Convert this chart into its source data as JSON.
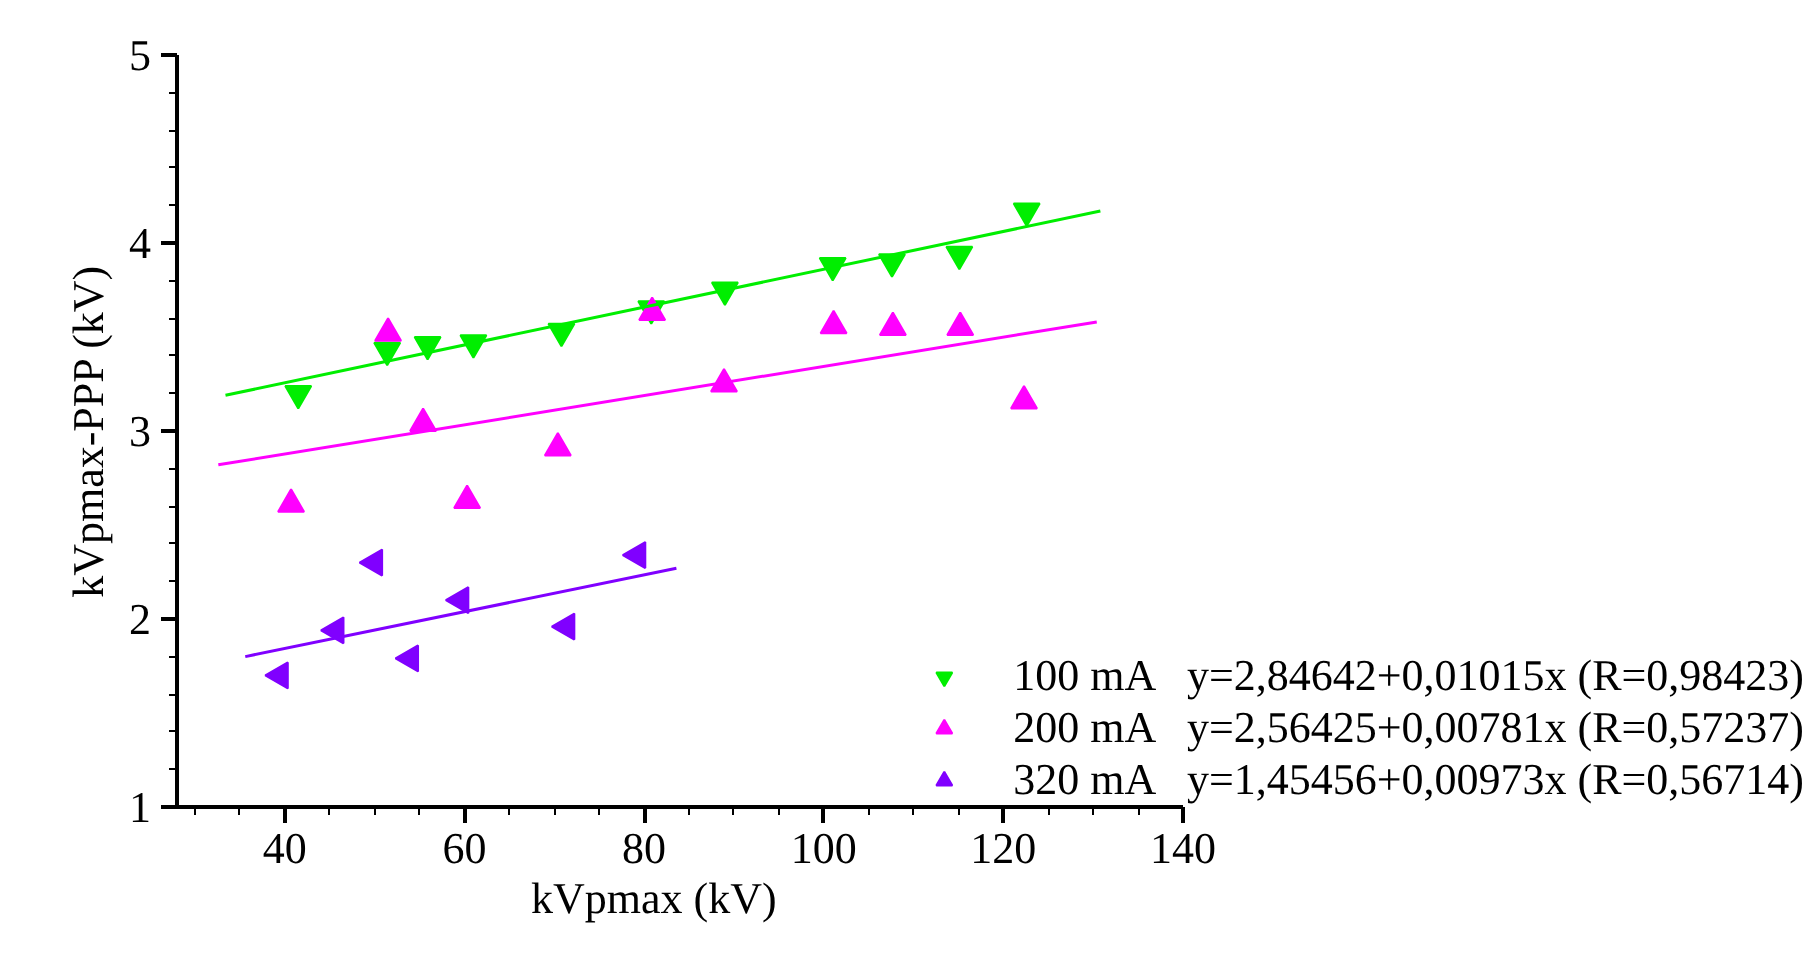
{
  "chart_data": {
    "type": "scatter",
    "xlabel": "kVpmax (kV)",
    "ylabel": "kVpmax-PPP (kV)",
    "xlim": [
      28,
      140
    ],
    "ylim": [
      1,
      5
    ],
    "xticks": [
      40,
      60,
      80,
      100,
      120,
      140,
      {
        "value": 30,
        "label": null
      },
      {
        "value": 35,
        "label": null
      },
      {
        "value": 45,
        "label": null
      },
      {
        "value": 50,
        "label": null
      },
      {
        "value": 55,
        "label": null
      },
      {
        "value": 65,
        "label": null
      },
      {
        "value": 70,
        "label": null
      },
      {
        "value": 75,
        "label": null
      },
      {
        "value": 85,
        "label": null
      },
      {
        "value": 90,
        "label": null
      },
      {
        "value": 95,
        "label": null
      },
      {
        "value": 105,
        "label": null
      },
      {
        "value": 110,
        "label": null
      },
      {
        "value": 115,
        "label": null
      },
      {
        "value": 125,
        "label": null
      },
      {
        "value": 130,
        "label": null
      },
      {
        "value": 135,
        "label": null
      }
    ],
    "yticks": [
      1,
      2,
      3,
      4,
      5,
      {
        "value": 1.2,
        "label": null
      },
      {
        "value": 1.4,
        "label": null
      },
      {
        "value": 1.6,
        "label": null
      },
      {
        "value": 1.8,
        "label": null
      },
      {
        "value": 2.2,
        "label": null
      },
      {
        "value": 2.4,
        "label": null
      },
      {
        "value": 2.6,
        "label": null
      },
      {
        "value": 2.8,
        "label": null
      },
      {
        "value": 3.2,
        "label": null
      },
      {
        "value": 3.4,
        "label": null
      },
      {
        "value": 3.6,
        "label": null
      },
      {
        "value": 3.8,
        "label": null
      },
      {
        "value": 4.2,
        "label": null
      },
      {
        "value": 4.4,
        "label": null
      },
      {
        "value": 4.6,
        "label": null
      },
      {
        "value": 4.8,
        "label": null
      }
    ],
    "grid": false,
    "legend": "bottom right",
    "series": [
      {
        "name": "100 mA   y=2,84642+0,01015x (R=0,98423)",
        "color": "#00ee00",
        "marker": "triangle",
        "x": [
          41.5,
          51.4,
          55.9,
          61.0,
          70.8,
          80.8,
          89.0,
          101.0,
          107.6,
          115.1,
          122.6
        ],
        "values": [
          3.2,
          3.43,
          3.46,
          3.47,
          3.53,
          3.65,
          3.75,
          3.88,
          3.9,
          3.94,
          4.17
        ]
      },
      {
        "name": "200 mA   y=2,56425+0,00781x (R=0,57237)",
        "color": "#ff00ff",
        "marker": "triangle",
        "x": [
          40.7,
          51.5,
          55.4,
          60.3,
          70.4,
          80.9,
          88.9,
          101.1,
          107.7,
          115.2,
          122.3
        ],
        "values": [
          2.61,
          3.52,
          3.04,
          2.63,
          2.91,
          3.63,
          3.25,
          3.56,
          3.55,
          3.55,
          3.16
        ]
      },
      {
        "name": "320 mA   y=1,45456+0,00973x (R=0,56714)",
        "color": "#8000ff",
        "marker": "triangle",
        "x": [
          39.5,
          45.7,
          50.0,
          54.0,
          59.6,
          71.4,
          79.3
        ],
        "values": [
          1.7,
          1.94,
          2.3,
          1.79,
          2.1,
          1.96,
          2.34
        ]
      },
      {
        "type": "line",
        "color": "#00ee00",
        "x": [
          33.4,
          130.8
        ],
        "values": [
          3.19,
          4.17
        ]
      },
      {
        "type": "line",
        "color": "#ff00ff",
        "x": [
          32.6,
          130.4
        ],
        "values": [
          2.82,
          3.58
        ]
      },
      {
        "type": "line",
        "color": "#8000ff",
        "x": [
          35.6,
          83.6
        ],
        "values": [
          1.8,
          2.27
        ]
      }
    ]
  }
}
